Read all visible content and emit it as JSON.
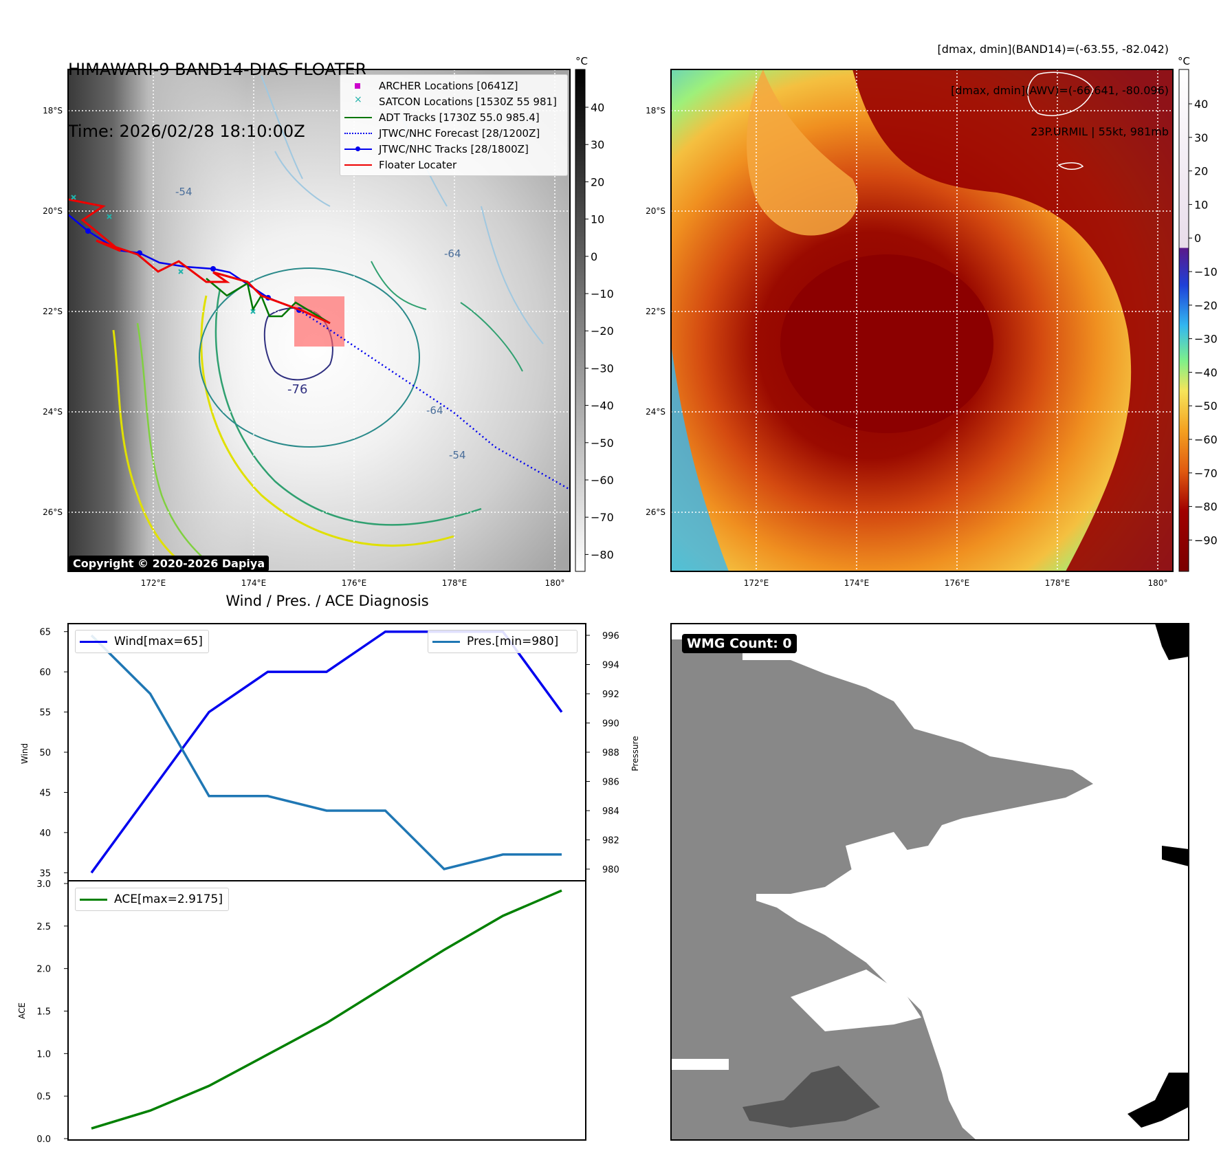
{
  "header": {
    "title_line1": "HIMAWARI-9 BAND14-DIAS FLOATER",
    "title_line2": "Time: 2026/02/28 18:10:00Z",
    "info_line1": "[dmax, dmin](BAND14)=(-63.55, -82.042)",
    "info_line2": "[dmax, dmin](AWV)=(-66.641, -80.096)",
    "info_line3": "23P.URMIL | 55kt, 981mb"
  },
  "map_panel": {
    "lat_labels": [
      "18°S",
      "20°S",
      "22°S",
      "24°S",
      "26°S"
    ],
    "lon_labels": [
      "172°E",
      "174°E",
      "176°E",
      "178°E",
      "180°"
    ],
    "contour_labels": [
      "-54",
      "-64",
      "-76",
      "-64",
      "-54"
    ],
    "copyright": "Copyright © 2020-2026 Dapiya",
    "legend": [
      {
        "label": "ARCHER Locations [0641Z]",
        "color": "#cc00cc",
        "marker": "square"
      },
      {
        "label": "SATCON Locations [1530Z 55 981]",
        "color": "#20b2aa",
        "marker": "x"
      },
      {
        "label": "ADT Tracks [1730Z 55.0 985.4]",
        "color": "#007700",
        "marker": "line"
      },
      {
        "label": "JTWC/NHC Forecast [28/1200Z]",
        "color": "#0000ee",
        "marker": "dotted"
      },
      {
        "label": "JTWC/NHC Tracks [28/1800Z]",
        "color": "#0000ee",
        "marker": "line-dot"
      },
      {
        "label": "Floater Locater",
        "color": "#ee0000",
        "marker": "line"
      }
    ],
    "colorbar": {
      "unit": "°C",
      "ticks": [
        "40",
        "30",
        "20",
        "10",
        "0",
        "−10",
        "−20",
        "−30",
        "−40",
        "−50",
        "−60",
        "−70",
        "−80"
      ]
    }
  },
  "awv_panel": {
    "lat_labels": [
      "18°S",
      "20°S",
      "22°S",
      "24°S",
      "26°S"
    ],
    "lon_labels": [
      "172°E",
      "174°E",
      "176°E",
      "178°E",
      "180°"
    ],
    "colorbar": {
      "unit": "°C",
      "ticks": [
        "40",
        "30",
        "20",
        "10",
        "0",
        "−10",
        "−20",
        "−30",
        "−40",
        "−50",
        "−60",
        "−70",
        "−80",
        "−90"
      ]
    }
  },
  "diagnosis": {
    "title": "Wind / Pres. / ACE Diagnosis"
  },
  "chart_data": [
    {
      "type": "line",
      "title": "Wind / Pres. / ACE Diagnosis",
      "ylabel": "Wind",
      "y2label": "Pressure",
      "x": [
        0,
        1,
        2,
        3,
        4,
        5,
        6,
        7,
        8
      ],
      "ylim": [
        34,
        66
      ],
      "y2lim": [
        979.2,
        996.8
      ],
      "yticks": [
        35,
        40,
        45,
        50,
        55,
        60,
        65
      ],
      "y2ticks": [
        980,
        982,
        984,
        986,
        988,
        990,
        992,
        994,
        996
      ],
      "series": [
        {
          "name": "Wind[max=65]",
          "axis": "left",
          "color": "#0000ee",
          "values": [
            35,
            45,
            55,
            60,
            60,
            65,
            65,
            65,
            55
          ]
        },
        {
          "name": "Pres.[min=980]",
          "axis": "right",
          "color": "#1f77b4",
          "values": [
            996,
            992,
            985,
            985,
            984,
            984,
            980,
            981,
            981
          ]
        }
      ],
      "legend": [
        "top-left",
        "top-right"
      ]
    },
    {
      "type": "line",
      "ylabel": "ACE",
      "x": [
        0,
        1,
        2,
        3,
        4,
        5,
        6,
        7,
        8
      ],
      "ylim": [
        0,
        3.0
      ],
      "yticks": [
        "0.0",
        "0.5",
        "1.0",
        "1.5",
        "2.0",
        "2.5",
        "3.0"
      ],
      "series": [
        {
          "name": "ACE[max=2.9175]",
          "color": "#008000",
          "values": [
            0.12,
            0.33,
            0.62,
            0.99,
            1.36,
            1.79,
            2.22,
            2.62,
            2.9175
          ]
        }
      ],
      "legend": "top-left"
    }
  ],
  "wmg_panel": {
    "label": "WMG Count: 0"
  }
}
